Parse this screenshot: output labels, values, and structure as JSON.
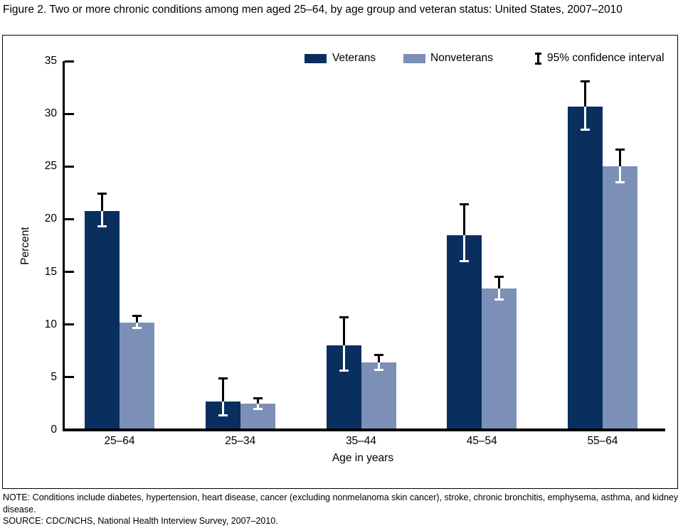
{
  "title": "Figure 2. Two or more chronic conditions among men aged 25–64, by age group and veteran status:  United States, 2007–2010",
  "legend": {
    "veterans_label": "Veterans",
    "nonveterans_label": "Nonveterans",
    "ci_label": "95% confidence interval"
  },
  "colors": {
    "veterans": "#082f5e",
    "nonveterans": "#7c8fb6",
    "axis": "#000000",
    "background": "#ffffff"
  },
  "chart_data": {
    "type": "bar",
    "title": "Two or more chronic conditions among men aged 25–64, by age group and veteran status",
    "categories": [
      "25–64",
      "25–34",
      "35–44",
      "45–54",
      "55–64"
    ],
    "series": [
      {
        "name": "Veterans",
        "color": "#082f5e",
        "values": [
          20.8,
          2.7,
          8.0,
          18.5,
          30.7
        ],
        "ci_low": [
          19.3,
          1.4,
          5.6,
          16.0,
          28.5
        ],
        "ci_high": [
          22.4,
          4.9,
          10.7,
          21.4,
          33.1
        ]
      },
      {
        "name": "Nonveterans",
        "color": "#7c8fb6",
        "values": [
          10.2,
          2.5,
          6.4,
          13.4,
          25.0
        ],
        "ci_low": [
          9.7,
          2.0,
          5.7,
          12.4,
          23.5
        ],
        "ci_high": [
          10.8,
          3.0,
          7.1,
          14.5,
          26.6
        ]
      }
    ],
    "xlabel": "Age in years",
    "ylabel": "Percent",
    "ylim": [
      0,
      35
    ],
    "yticks": [
      0,
      5,
      10,
      15,
      20,
      25,
      30,
      35
    ],
    "grid": false,
    "legend_position": "top",
    "error_bars": "95% confidence interval"
  },
  "notes": {
    "note": "NOTE: Conditions include diabetes, hypertension, heart disease, cancer (excluding nonmelanoma skin cancer), stroke, chronic bronchitis, emphysema, asthma, and kidney disease.",
    "source": "SOURCE: CDC/NCHS, National Health Interview Survey, 2007–2010."
  }
}
